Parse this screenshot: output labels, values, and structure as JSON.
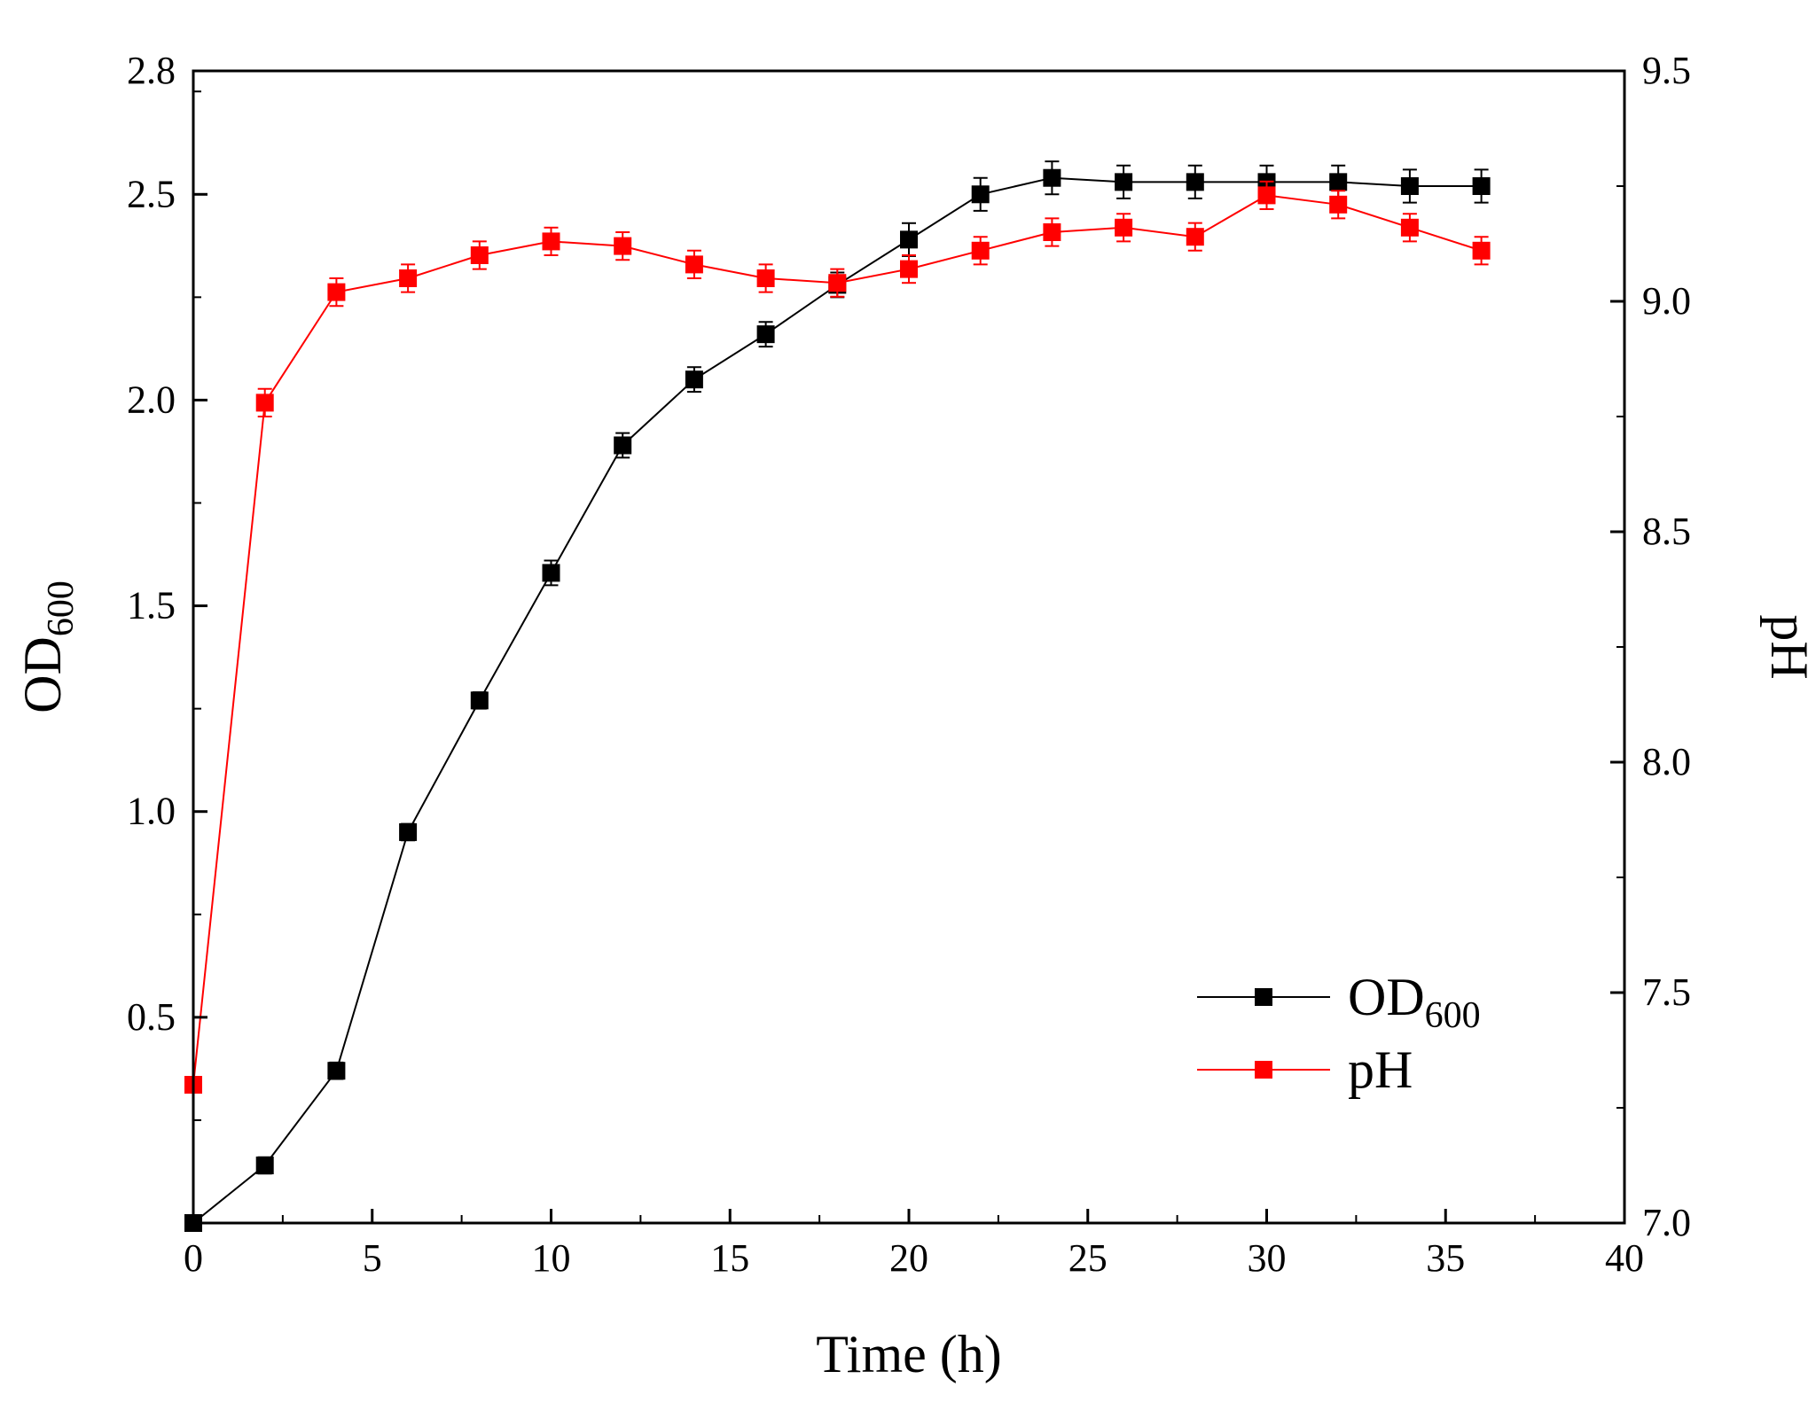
{
  "chart_data": {
    "type": "line",
    "title": "",
    "xlabel": "Time (h)",
    "ylabel": "OD",
    "ylabel_sub": "600",
    "y2label": "pH",
    "xlim": [
      0,
      40
    ],
    "ylim": [
      0.0,
      2.8
    ],
    "y2lim": [
      7.0,
      9.5
    ],
    "xticks": [
      0,
      5,
      10,
      15,
      20,
      25,
      30,
      35,
      40
    ],
    "yticks": [
      0.5,
      1.0,
      1.5,
      2.0,
      2.5,
      2.8
    ],
    "y2ticks": [
      7.0,
      7.5,
      8.0,
      8.5,
      9.0,
      9.5
    ],
    "legend_position": "bottom-right",
    "x": [
      0,
      2,
      4,
      6,
      8,
      10,
      12,
      14,
      16,
      18,
      20,
      22,
      24,
      26,
      28,
      30,
      32,
      34,
      36
    ],
    "series": [
      {
        "name": "OD",
        "name_sub": "600",
        "axis": "left",
        "color": "#000000",
        "values": [
          0.0,
          0.14,
          0.37,
          0.95,
          1.27,
          1.58,
          1.89,
          2.05,
          2.16,
          2.28,
          2.39,
          2.5,
          2.54,
          2.53,
          2.53,
          2.53,
          2.53,
          2.52,
          2.52
        ],
        "errors": [
          0.0,
          0.02,
          0.02,
          0.02,
          0.02,
          0.03,
          0.03,
          0.03,
          0.03,
          0.03,
          0.04,
          0.04,
          0.04,
          0.04,
          0.04,
          0.04,
          0.04,
          0.04,
          0.04
        ]
      },
      {
        "name": "pH",
        "name_sub": "",
        "axis": "right",
        "color": "#ff0000",
        "values": [
          7.3,
          8.78,
          9.02,
          9.05,
          9.1,
          9.13,
          9.12,
          9.08,
          9.05,
          9.04,
          9.07,
          9.11,
          9.15,
          9.16,
          9.14,
          9.23,
          9.21,
          9.16,
          9.11
        ],
        "errors": [
          0.0,
          0.03,
          0.03,
          0.03,
          0.03,
          0.03,
          0.03,
          0.03,
          0.03,
          0.03,
          0.03,
          0.03,
          0.03,
          0.03,
          0.03,
          0.03,
          0.03,
          0.03,
          0.03
        ]
      }
    ]
  }
}
